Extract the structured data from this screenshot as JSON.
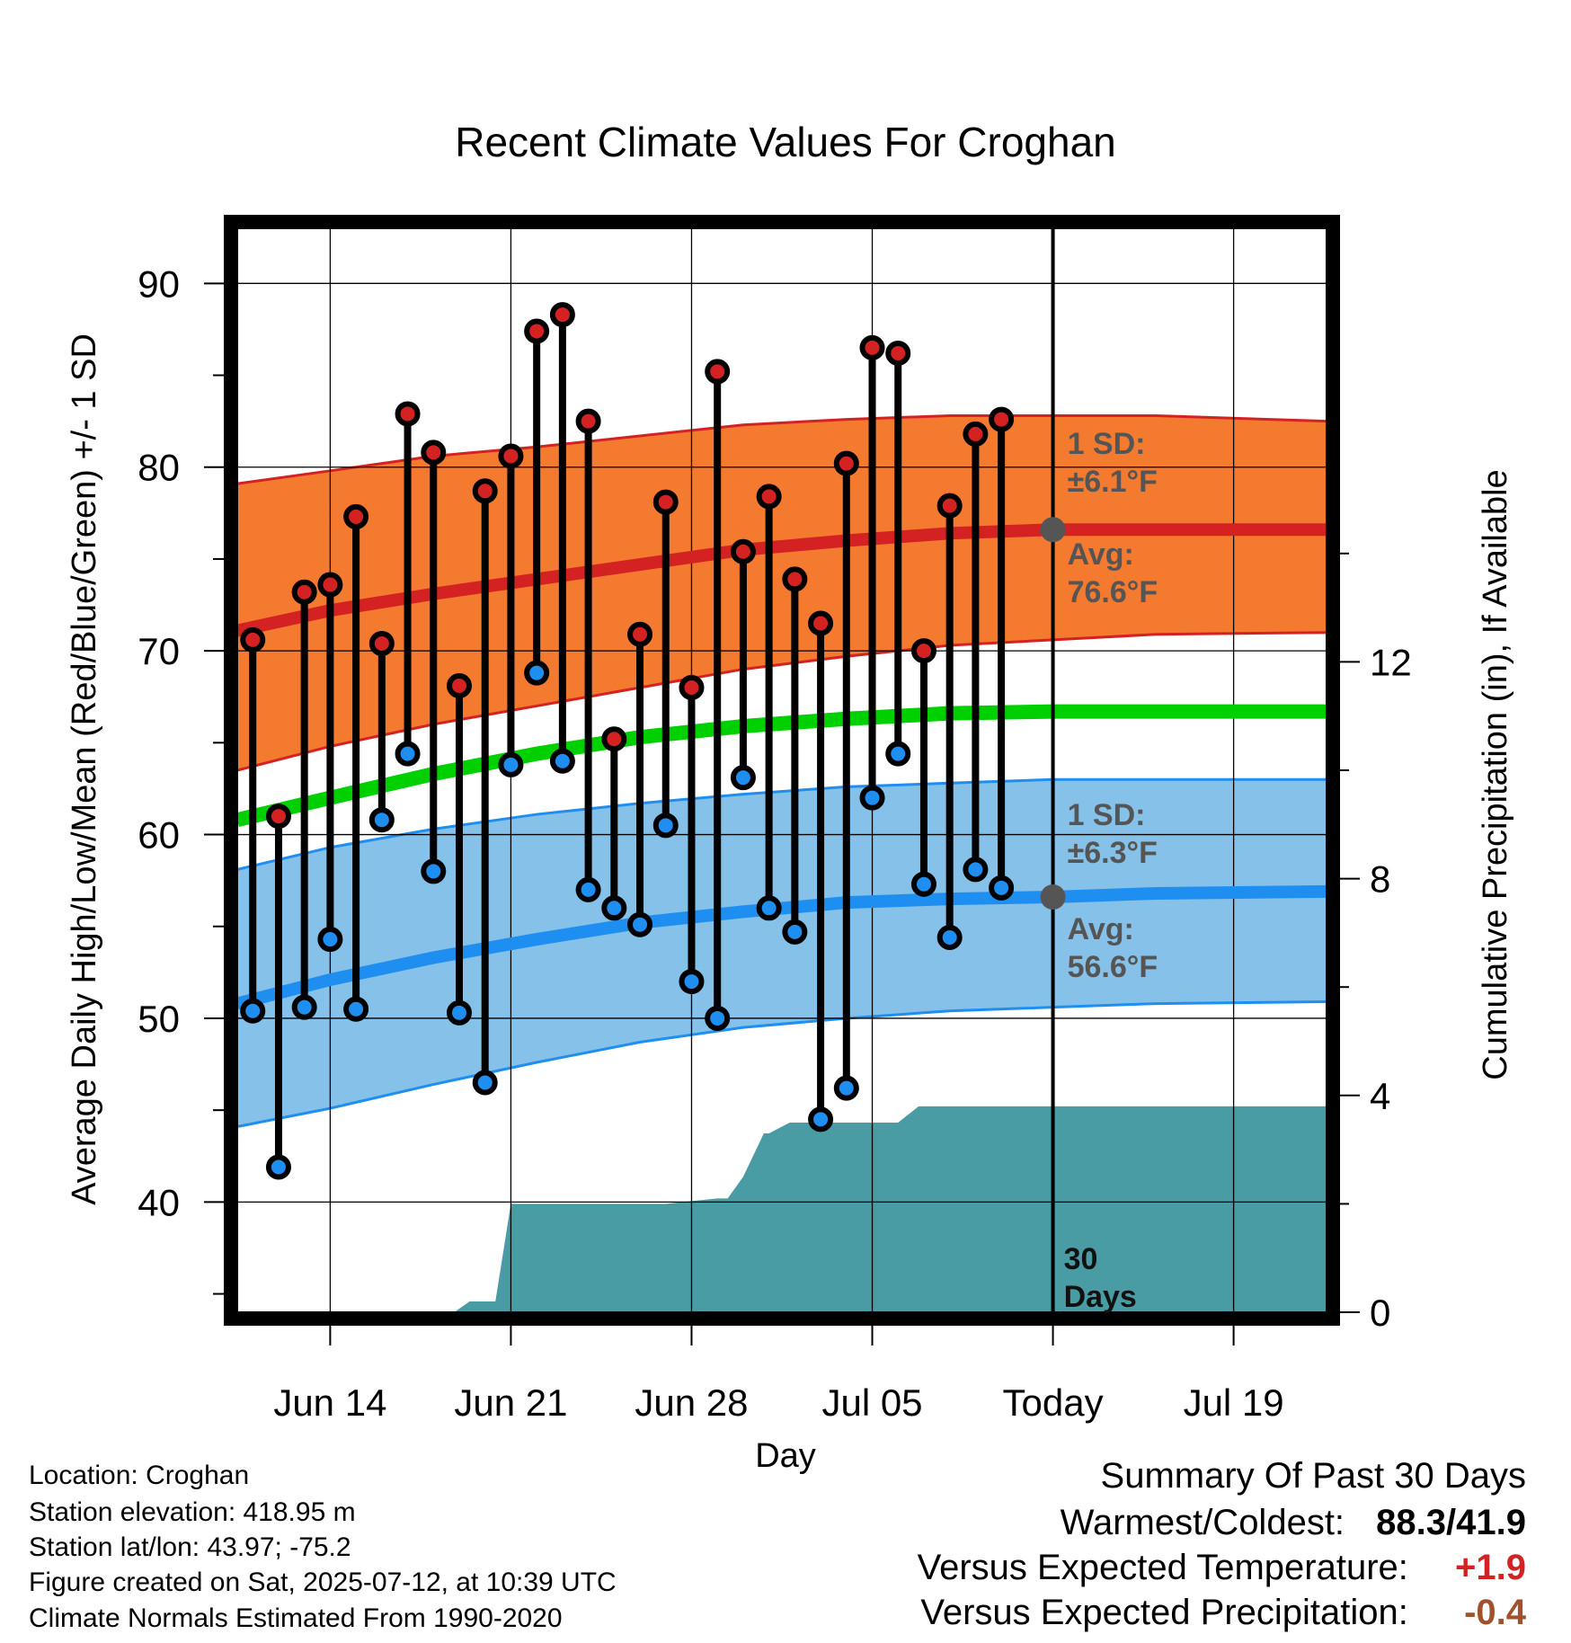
{
  "chart_data": {
    "type": "line",
    "title": "Recent Climate Values For Croghan",
    "xlabel": "Day",
    "ylabel": "Average Daily High/Low/Mean (Red/Blue/Green) +/- 1 SD",
    "y2label": "Cumulative Precipitation (in), If Available",
    "x_start_date": "2025-06-11",
    "x_range_days": [
      -0.6,
      41.6
    ],
    "ylim": [
      34,
      93
    ],
    "y2lim": [
      0,
      20
    ],
    "x_ticks": [
      {
        "day": 3,
        "label": "Jun 14"
      },
      {
        "day": 10,
        "label": "Jun 21"
      },
      {
        "day": 17,
        "label": "Jun 28"
      },
      {
        "day": 24,
        "label": "Jul 05"
      },
      {
        "day": 31,
        "label": "Today"
      },
      {
        "day": 38,
        "label": "Jul 19"
      }
    ],
    "y_ticks": [
      40,
      50,
      60,
      70,
      80,
      90
    ],
    "y2_ticks": [
      0,
      4,
      8,
      12
    ],
    "today_day": 31,
    "daily_highs": [
      70.6,
      61.0,
      73.2,
      73.6,
      77.3,
      70.4,
      82.9,
      80.8,
      68.1,
      78.7,
      80.6,
      87.4,
      88.3,
      82.5,
      65.2,
      70.9,
      78.1,
      68.0,
      85.2,
      75.4,
      78.4,
      73.9,
      71.5,
      80.2,
      86.5,
      86.2,
      70.0,
      77.9,
      81.8,
      82.6
    ],
    "daily_lows": [
      50.4,
      41.9,
      50.6,
      54.3,
      50.5,
      60.8,
      64.4,
      58.0,
      50.3,
      46.5,
      63.8,
      68.8,
      64.0,
      57.0,
      56.0,
      55.1,
      60.5,
      52.0,
      50.0,
      63.1,
      56.0,
      54.7,
      44.5,
      46.2,
      62.0,
      64.4,
      57.3,
      54.4,
      58.1,
      57.1
    ],
    "normals": {
      "days": [
        -0.6,
        3,
        7,
        11,
        15,
        19,
        23,
        27,
        31,
        35,
        41.6
      ],
      "high": [
        71.1,
        72.2,
        73.1,
        73.9,
        74.7,
        75.5,
        76.0,
        76.4,
        76.6,
        76.6,
        76.6
      ],
      "high_upper": [
        79.1,
        79.8,
        80.6,
        81.1,
        81.7,
        82.3,
        82.6,
        82.8,
        82.8,
        82.8,
        82.5
      ],
      "high_lower": [
        63.5,
        64.8,
        66.0,
        67.0,
        68.0,
        69.0,
        69.7,
        70.3,
        70.6,
        70.9,
        71.0
      ],
      "mean": [
        60.8,
        62.0,
        63.3,
        64.4,
        65.3,
        65.9,
        66.3,
        66.6,
        66.7,
        66.7,
        66.7
      ],
      "low": [
        50.8,
        52.1,
        53.3,
        54.3,
        55.2,
        55.8,
        56.3,
        56.5,
        56.6,
        56.8,
        56.9
      ],
      "low_upper": [
        58.1,
        59.3,
        60.3,
        61.1,
        61.7,
        62.2,
        62.6,
        62.8,
        63.0,
        63.0,
        63.0
      ],
      "low_lower": [
        44.1,
        45.1,
        46.4,
        47.6,
        48.7,
        49.5,
        50.0,
        50.4,
        50.6,
        50.8,
        50.9
      ]
    },
    "precip_cumulative": {
      "days": [
        -0.6,
        7.8,
        8.4,
        9.4,
        10.0,
        11.0,
        12.0,
        14.0,
        16.0,
        18.0,
        18.4,
        19.0,
        19.8,
        20.0,
        20.8,
        21.0,
        24.0,
        25.0,
        25.8,
        26.0,
        31.0,
        41.6
      ],
      "values": [
        0,
        0,
        0.2,
        0.2,
        2.0,
        2.0,
        2.0,
        2.0,
        2.0,
        2.1,
        2.1,
        2.5,
        3.3,
        3.3,
        3.5,
        3.5,
        3.5,
        3.5,
        3.8,
        3.8,
        3.8,
        3.8
      ]
    },
    "annotations": {
      "high_sd_label": "1 SD:",
      "high_sd_value": "±6.1°F",
      "high_avg_label": "Avg:",
      "high_avg_value": "76.6°F",
      "low_sd_label": "1 SD:",
      "low_sd_value": "±6.3°F",
      "low_avg_label": "Avg:",
      "low_avg_value": "56.6°F",
      "window_count": "30",
      "window_unit": "Days"
    },
    "colors": {
      "high_band": "#f47a30",
      "high_line": "#d42222",
      "low_band": "#85c1e8",
      "low_line": "#1e8ff0",
      "mean_line": "#00d000",
      "precip": "#4a9ca4",
      "high_marker": "#d42222",
      "low_marker": "#1e8ff0",
      "today_marker": "#555555"
    }
  },
  "info": {
    "location": "Location: Croghan",
    "elevation": "Station elevation: 418.95 m",
    "latlon": "Station lat/lon: 43.97; -75.2",
    "created": "Figure created on Sat, 2025-07-12, at 10:39 UTC",
    "normals": "Climate Normals Estimated From 1990-2020"
  },
  "summary": {
    "title": "Summary Of Past 30 Days",
    "warmest_label": "Warmest/Coldest:",
    "warmest_value": "88.3/41.9",
    "temp_label": "Versus Expected Temperature:",
    "temp_value": "+1.9",
    "temp_color": "#d42222",
    "precip_label": "Versus Expected Precipitation:",
    "precip_value": "-0.4",
    "precip_color": "#a0522d"
  }
}
